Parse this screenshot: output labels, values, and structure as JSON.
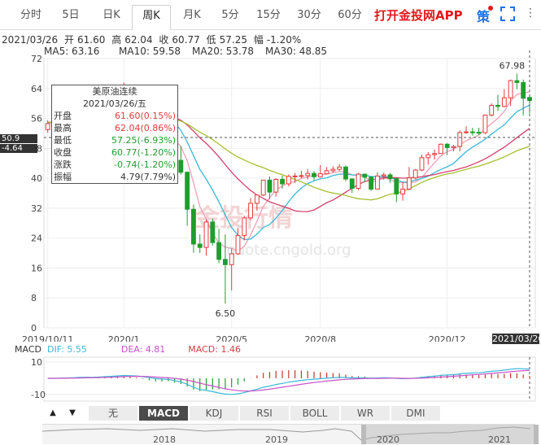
{
  "tabs": [
    {
      "label": "分时",
      "active": false
    },
    {
      "label": "5日",
      "active": false
    },
    {
      "label": "日K",
      "active": false
    },
    {
      "label": "周K",
      "active": true
    },
    {
      "label": "月K",
      "active": false
    },
    {
      "label": "5分",
      "active": false
    },
    {
      "label": "15分",
      "active": false
    },
    {
      "label": "30分",
      "active": false
    },
    {
      "label": "60分",
      "active": false
    }
  ],
  "app_link": "打开金投网APP",
  "strategy_label": "策",
  "info": {
    "date": "2021/03/26",
    "open_label": "开",
    "open": "61.60",
    "high_label": "高",
    "high": "62.04",
    "close_label": "收",
    "close": "60.77",
    "low_label": "低",
    "low": "57.25",
    "change_label": "幅",
    "change": "-1.20%"
  },
  "ma": [
    {
      "label": "MA5: 63.16",
      "color": "#f0a0b6"
    },
    {
      "label": "MA10: 59.58",
      "color": "#3bb8d8"
    },
    {
      "label": "MA20: 53.78",
      "color": "#d63f6c"
    },
    {
      "label": "MA30: 48.85",
      "color": "#a5c030"
    }
  ],
  "tooltip": {
    "title": "美原油连续",
    "date": "2021/03/26/五",
    "rows": [
      {
        "label": "开盘",
        "value": "61.60(0.15%)",
        "color": "#e23b3b"
      },
      {
        "label": "最高",
        "value": "62.04(0.86%)",
        "color": "#e23b3b"
      },
      {
        "label": "最低",
        "value": "57.25(-6.93%)",
        "color": "#1e9e2c"
      },
      {
        "label": "收盘",
        "value": "60.77(-1.20%)",
        "color": "#1e9e2c"
      },
      {
        "label": "涨跌",
        "value": "-0.74(-1.20%)",
        "color": "#1e9e2c"
      },
      {
        "label": "振幅",
        "value": "4.79(7.79%)",
        "color": "#333333"
      }
    ]
  },
  "crosshair": {
    "price": "50.9",
    "pct": "-4.64"
  },
  "date_tag": "2021/03/26",
  "macd": {
    "name": "MACD",
    "dif": "DIF: 5.55",
    "dea": "DEA: 4.81",
    "macd": "MACD: 1.46",
    "dif_color": "#3bb8d8",
    "dea_color": "#c850c8",
    "macd_color": "#d63f3f"
  },
  "indicators": [
    {
      "label": "无",
      "active": false
    },
    {
      "label": "MACD",
      "active": true
    },
    {
      "label": "KDJ",
      "active": false
    },
    {
      "label": "RSI",
      "active": false
    },
    {
      "label": "BOLL",
      "active": false
    },
    {
      "label": "WR",
      "active": false
    },
    {
      "label": "DMI",
      "active": false
    }
  ],
  "arrows": {
    "left": "▲",
    "right": "▼"
  },
  "navigator": {
    "years": [
      "2018",
      "2019",
      "2020",
      "2021"
    ]
  },
  "watermark": "金投行情",
  "watermark_url": "quote.cngold.org",
  "chart_data": {
    "type": "candlestick",
    "title": "",
    "ylim": [
      0,
      72
    ],
    "y_ticks": [
      "0",
      "8",
      "16",
      "24",
      "32",
      "40",
      "48",
      "56",
      "64",
      "72"
    ],
    "x_ticks": [
      "2019/10/11",
      "2020/1",
      "2020/5",
      "2020/8",
      "2020/12"
    ],
    "up_color": "#e23b3b",
    "down_color": "#1e9e2c",
    "annotations": [
      {
        "label": "67.98",
        "kind": "max"
      },
      {
        "label": "6.50",
        "kind": "min"
      }
    ],
    "candles": [
      {
        "date": "2019/10/11",
        "o": 53.0,
        "h": 55.5,
        "l": 52.2,
        "c": 54.6
      },
      {
        "date": "2019/10/18",
        "o": 54.6,
        "h": 56.8,
        "l": 53.3,
        "c": 53.8
      },
      {
        "date": "2019/10/25",
        "o": 53.8,
        "h": 57.0,
        "l": 53.5,
        "c": 56.6
      },
      {
        "date": "2019/11/01",
        "o": 56.6,
        "h": 57.8,
        "l": 54.8,
        "c": 56.2
      },
      {
        "date": "2019/11/08",
        "o": 56.2,
        "h": 58.2,
        "l": 55.6,
        "c": 57.2
      },
      {
        "date": "2019/11/15",
        "o": 57.2,
        "h": 58.3,
        "l": 56.0,
        "c": 57.7
      },
      {
        "date": "2019/11/22",
        "o": 57.7,
        "h": 58.6,
        "l": 56.8,
        "c": 57.8
      },
      {
        "date": "2019/11/29",
        "o": 57.8,
        "h": 58.6,
        "l": 55.0,
        "c": 55.2
      },
      {
        "date": "2019/12/06",
        "o": 55.2,
        "h": 59.3,
        "l": 55.0,
        "c": 59.2
      },
      {
        "date": "2019/12/13",
        "o": 59.2,
        "h": 60.2,
        "l": 58.0,
        "c": 60.1
      },
      {
        "date": "2019/12/20",
        "o": 60.1,
        "h": 61.3,
        "l": 59.6,
        "c": 60.4
      },
      {
        "date": "2019/12/27",
        "o": 60.4,
        "h": 62.0,
        "l": 60.0,
        "c": 61.7
      },
      {
        "date": "2020/01/03",
        "o": 61.7,
        "h": 65.6,
        "l": 60.8,
        "c": 63.0
      },
      {
        "date": "2020/01/10",
        "o": 63.0,
        "h": 64.7,
        "l": 58.7,
        "c": 59.0
      },
      {
        "date": "2020/01/17",
        "o": 59.0,
        "h": 59.5,
        "l": 57.2,
        "c": 58.5
      },
      {
        "date": "2020/01/24",
        "o": 58.5,
        "h": 58.9,
        "l": 53.8,
        "c": 54.2
      },
      {
        "date": "2020/01/31",
        "o": 54.2,
        "h": 54.4,
        "l": 50.7,
        "c": 51.6
      },
      {
        "date": "2020/02/07",
        "o": 51.6,
        "h": 52.0,
        "l": 49.3,
        "c": 50.3
      },
      {
        "date": "2020/02/14",
        "o": 50.3,
        "h": 52.6,
        "l": 49.8,
        "c": 52.0
      },
      {
        "date": "2020/02/21",
        "o": 52.0,
        "h": 54.0,
        "l": 51.6,
        "c": 53.4
      },
      {
        "date": "2020/02/28",
        "o": 53.4,
        "h": 53.8,
        "l": 44.0,
        "c": 44.8
      },
      {
        "date": "2020/03/06",
        "o": 44.8,
        "h": 48.6,
        "l": 41.0,
        "c": 41.6
      },
      {
        "date": "2020/03/13",
        "o": 41.6,
        "h": 41.8,
        "l": 27.3,
        "c": 31.7
      },
      {
        "date": "2020/03/20",
        "o": 31.7,
        "h": 33.0,
        "l": 20.1,
        "c": 22.4
      },
      {
        "date": "2020/03/27",
        "o": 22.4,
        "h": 25.0,
        "l": 20.0,
        "c": 21.5
      },
      {
        "date": "2020/04/03",
        "o": 21.5,
        "h": 29.0,
        "l": 19.3,
        "c": 28.3
      },
      {
        "date": "2020/04/10",
        "o": 28.3,
        "h": 29.2,
        "l": 22.0,
        "c": 22.8
      },
      {
        "date": "2020/04/17",
        "o": 22.8,
        "h": 26.5,
        "l": 17.3,
        "c": 18.3
      },
      {
        "date": "2020/04/24",
        "o": 18.3,
        "h": 25.0,
        "l": 6.5,
        "c": 16.9
      },
      {
        "date": "2020/05/01",
        "o": 16.9,
        "h": 21.2,
        "l": 10.0,
        "c": 19.8
      },
      {
        "date": "2020/05/08",
        "o": 19.8,
        "h": 26.7,
        "l": 19.5,
        "c": 24.7
      },
      {
        "date": "2020/05/15",
        "o": 24.7,
        "h": 30.0,
        "l": 23.4,
        "c": 29.4
      },
      {
        "date": "2020/05/22",
        "o": 29.4,
        "h": 34.7,
        "l": 28.8,
        "c": 33.3
      },
      {
        "date": "2020/05/29",
        "o": 33.3,
        "h": 35.6,
        "l": 31.3,
        "c": 35.5
      },
      {
        "date": "2020/06/05",
        "o": 35.5,
        "h": 39.6,
        "l": 35.2,
        "c": 39.5
      },
      {
        "date": "2020/06/12",
        "o": 39.5,
        "h": 40.5,
        "l": 34.4,
        "c": 36.3
      },
      {
        "date": "2020/06/19",
        "o": 36.3,
        "h": 40.0,
        "l": 35.1,
        "c": 39.7
      },
      {
        "date": "2020/06/26",
        "o": 39.7,
        "h": 40.7,
        "l": 37.2,
        "c": 38.5
      },
      {
        "date": "2020/07/03",
        "o": 38.5,
        "h": 41.0,
        "l": 37.8,
        "c": 40.5
      },
      {
        "date": "2020/07/10",
        "o": 40.5,
        "h": 41.4,
        "l": 38.8,
        "c": 40.6
      },
      {
        "date": "2020/07/17",
        "o": 40.6,
        "h": 42.0,
        "l": 40.0,
        "c": 40.7
      },
      {
        "date": "2020/07/24",
        "o": 40.7,
        "h": 42.5,
        "l": 39.7,
        "c": 41.3
      },
      {
        "date": "2020/07/31",
        "o": 41.3,
        "h": 41.9,
        "l": 39.4,
        "c": 40.4
      },
      {
        "date": "2020/08/07",
        "o": 40.4,
        "h": 43.5,
        "l": 40.2,
        "c": 41.2
      },
      {
        "date": "2020/08/14",
        "o": 41.2,
        "h": 43.0,
        "l": 41.0,
        "c": 42.0
      },
      {
        "date": "2020/08/21",
        "o": 42.0,
        "h": 43.2,
        "l": 41.5,
        "c": 42.4
      },
      {
        "date": "2020/08/28",
        "o": 42.4,
        "h": 43.8,
        "l": 42.0,
        "c": 43.0
      },
      {
        "date": "2020/09/04",
        "o": 43.0,
        "h": 43.4,
        "l": 39.2,
        "c": 39.8
      },
      {
        "date": "2020/09/11",
        "o": 39.8,
        "h": 40.0,
        "l": 36.1,
        "c": 37.3
      },
      {
        "date": "2020/09/18",
        "o": 37.3,
        "h": 41.4,
        "l": 36.8,
        "c": 41.1
      },
      {
        "date": "2020/09/25",
        "o": 41.1,
        "h": 41.2,
        "l": 39.0,
        "c": 40.3
      },
      {
        "date": "2020/10/02",
        "o": 40.3,
        "h": 40.5,
        "l": 36.6,
        "c": 37.1
      },
      {
        "date": "2020/10/09",
        "o": 37.1,
        "h": 41.6,
        "l": 37.0,
        "c": 40.6
      },
      {
        "date": "2020/10/16",
        "o": 40.6,
        "h": 41.5,
        "l": 39.6,
        "c": 40.9
      },
      {
        "date": "2020/10/23",
        "o": 40.9,
        "h": 41.4,
        "l": 38.8,
        "c": 39.9
      },
      {
        "date": "2020/10/30",
        "o": 39.9,
        "h": 40.0,
        "l": 33.6,
        "c": 35.8
      },
      {
        "date": "2020/11/06",
        "o": 35.8,
        "h": 39.0,
        "l": 34.0,
        "c": 37.1
      },
      {
        "date": "2020/11/13",
        "o": 37.1,
        "h": 43.0,
        "l": 36.8,
        "c": 40.1
      },
      {
        "date": "2020/11/20",
        "o": 40.1,
        "h": 42.5,
        "l": 39.7,
        "c": 42.2
      },
      {
        "date": "2020/11/27",
        "o": 42.2,
        "h": 46.3,
        "l": 41.9,
        "c": 45.5
      },
      {
        "date": "2020/12/04",
        "o": 45.5,
        "h": 47.0,
        "l": 43.6,
        "c": 46.3
      },
      {
        "date": "2020/12/11",
        "o": 46.3,
        "h": 47.7,
        "l": 45.0,
        "c": 46.6
      },
      {
        "date": "2020/12/18",
        "o": 46.6,
        "h": 49.3,
        "l": 46.5,
        "c": 49.1
      },
      {
        "date": "2020/12/25",
        "o": 49.1,
        "h": 49.4,
        "l": 46.2,
        "c": 48.2
      },
      {
        "date": "2021/01/01",
        "o": 48.2,
        "h": 48.9,
        "l": 47.2,
        "c": 48.5
      },
      {
        "date": "2021/01/08",
        "o": 48.5,
        "h": 52.8,
        "l": 47.2,
        "c": 52.2
      },
      {
        "date": "2021/01/15",
        "o": 52.2,
        "h": 53.9,
        "l": 51.9,
        "c": 52.4
      },
      {
        "date": "2021/01/22",
        "o": 52.4,
        "h": 53.5,
        "l": 51.4,
        "c": 52.3
      },
      {
        "date": "2021/01/29",
        "o": 52.3,
        "h": 53.5,
        "l": 51.6,
        "c": 52.2
      },
      {
        "date": "2021/02/05",
        "o": 52.2,
        "h": 57.0,
        "l": 51.8,
        "c": 56.9
      },
      {
        "date": "2021/02/12",
        "o": 56.9,
        "h": 60.0,
        "l": 56.5,
        "c": 59.5
      },
      {
        "date": "2021/02/19",
        "o": 59.5,
        "h": 62.3,
        "l": 58.0,
        "c": 59.2
      },
      {
        "date": "2021/02/26",
        "o": 59.2,
        "h": 63.8,
        "l": 59.0,
        "c": 61.5
      },
      {
        "date": "2021/03/05",
        "o": 61.5,
        "h": 66.4,
        "l": 59.3,
        "c": 66.1
      },
      {
        "date": "2021/03/12",
        "o": 66.1,
        "h": 67.98,
        "l": 63.8,
        "c": 65.6
      },
      {
        "date": "2021/03/19",
        "o": 65.6,
        "h": 66.4,
        "l": 56.8,
        "c": 61.4
      },
      {
        "date": "2021/03/26",
        "o": 61.6,
        "h": 62.04,
        "l": 57.25,
        "c": 60.77
      }
    ],
    "macd": {
      "ylim": [
        -14,
        13
      ],
      "y_ticks": [
        "10",
        "-10"
      ]
    }
  }
}
